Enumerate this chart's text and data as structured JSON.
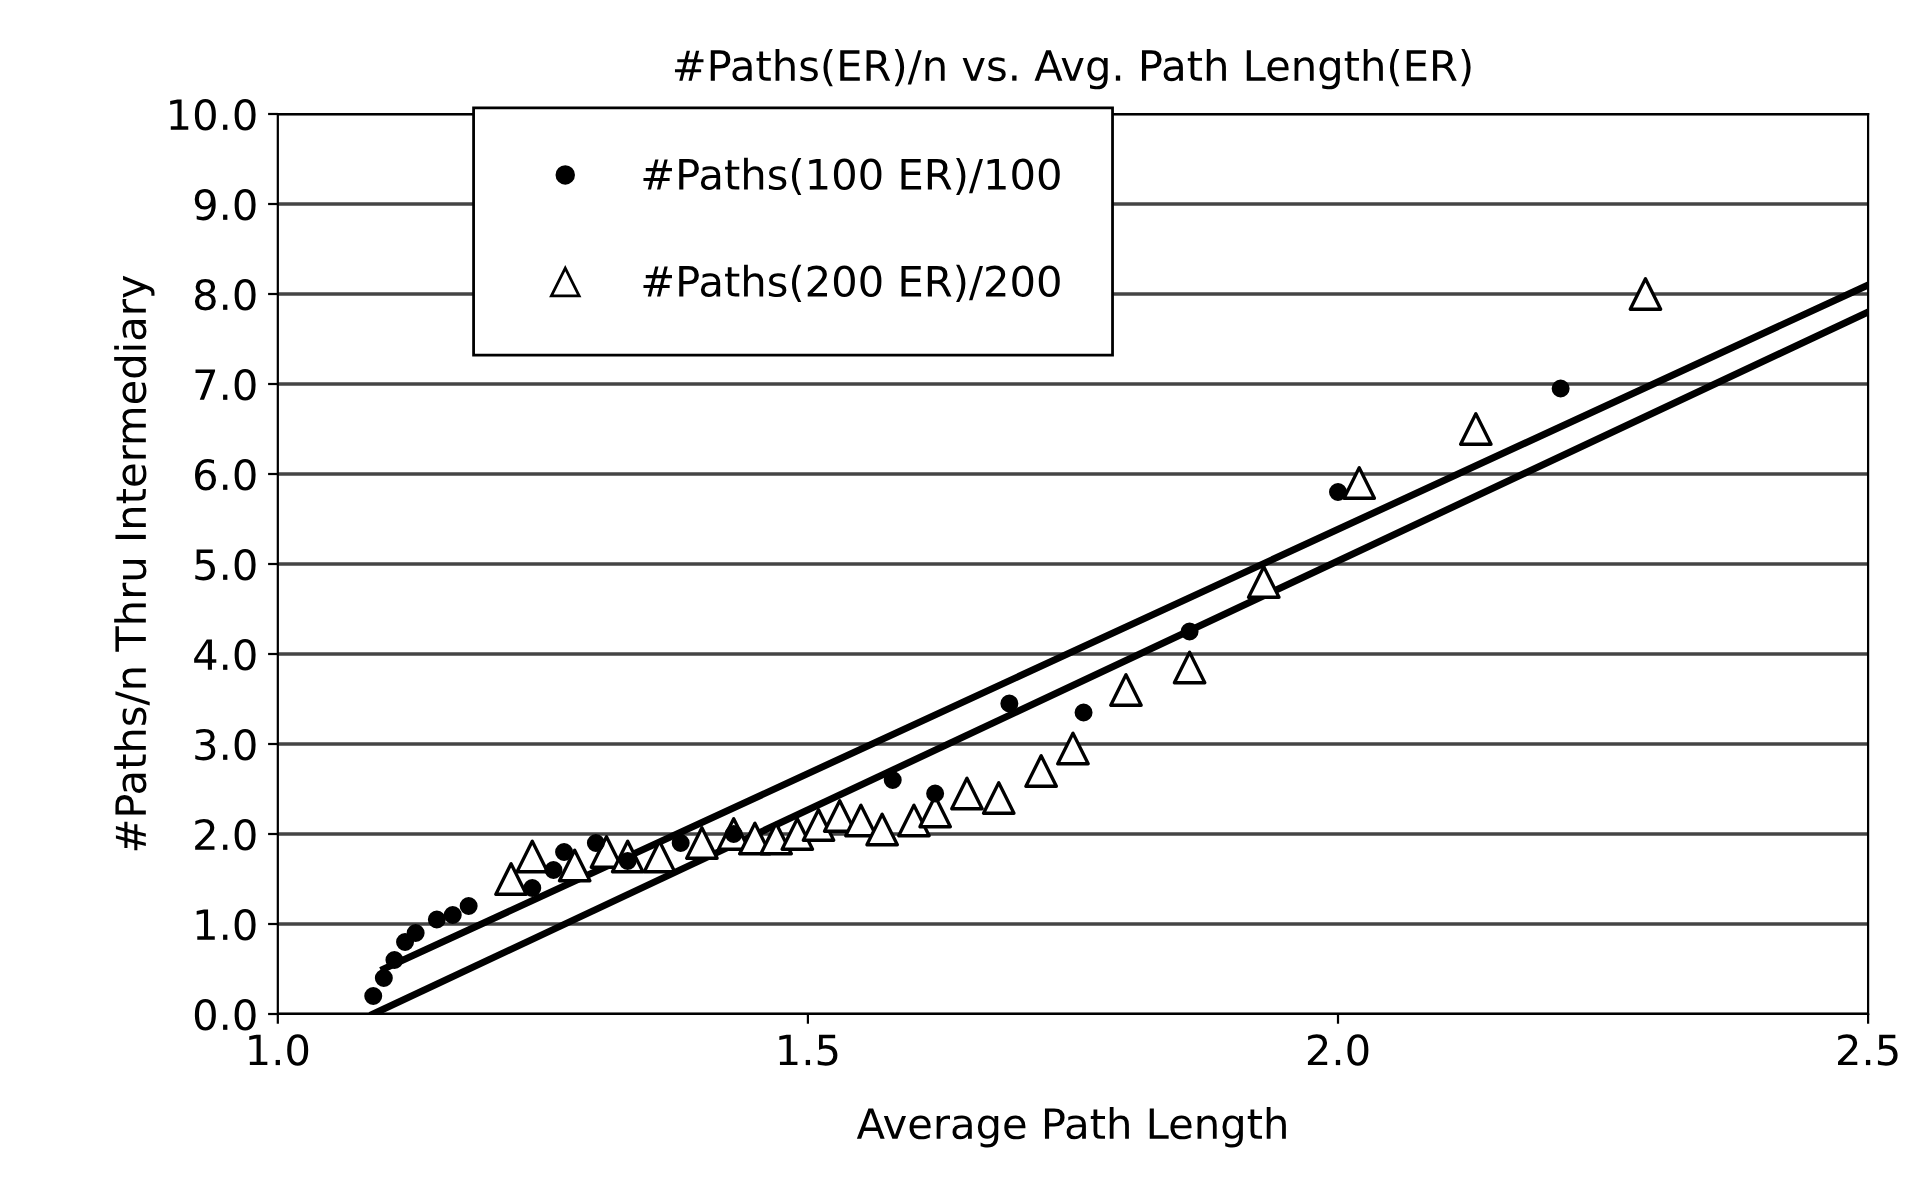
{
  "chart_data": {
    "type": "scatter",
    "title": "#Paths(ER)/n vs. Avg. Path Length(ER)",
    "xlabel": "Average Path Length",
    "ylabel": "#Paths/n Thru Intermediary",
    "xlim": [
      1.0,
      2.5
    ],
    "ylim": [
      0,
      10
    ],
    "xticks": [
      {
        "value": 1.0,
        "label": "1.0"
      },
      {
        "value": 1.5,
        "label": "1.5"
      },
      {
        "value": 2.0,
        "label": "2.0"
      },
      {
        "value": 2.5,
        "label": "2.5"
      }
    ],
    "yticks": [
      {
        "value": 0,
        "label": "0.0"
      },
      {
        "value": 1,
        "label": "1.0"
      },
      {
        "value": 2,
        "label": "2.0"
      },
      {
        "value": 3,
        "label": "3.0"
      },
      {
        "value": 4,
        "label": "4.0"
      },
      {
        "value": 5,
        "label": "5.0"
      },
      {
        "value": 6,
        "label": "6.0"
      },
      {
        "value": 7,
        "label": "7.0"
      },
      {
        "value": 8,
        "label": "8.0"
      },
      {
        "value": 9,
        "label": "9.0"
      },
      {
        "value": 10,
        "label": "10.0"
      }
    ],
    "grid": "y",
    "legend": "top left",
    "series": [
      {
        "name": "#Paths(100 ER)/100",
        "color": "#000000",
        "marker": "circle",
        "x": [
          1.09,
          1.1,
          1.11,
          1.12,
          1.13,
          1.15,
          1.165,
          1.18,
          1.24,
          1.26,
          1.27,
          1.3,
          1.33,
          1.38,
          1.43,
          1.58,
          1.62,
          1.69,
          1.76,
          1.86,
          2.0,
          2.21
        ],
        "values": [
          0.2,
          0.4,
          0.6,
          0.8,
          0.9,
          1.05,
          1.1,
          1.2,
          1.4,
          1.6,
          1.8,
          1.9,
          1.7,
          1.9,
          2.0,
          2.6,
          2.45,
          3.45,
          3.35,
          4.25,
          5.8,
          6.95
        ]
      },
      {
        "name": "#Paths(200 ER)/200",
        "color": "#000000",
        "marker": "triangle",
        "x": [
          1.22,
          1.24,
          1.28,
          1.31,
          1.33,
          1.36,
          1.4,
          1.43,
          1.45,
          1.47,
          1.49,
          1.51,
          1.53,
          1.55,
          1.57,
          1.6,
          1.62,
          1.65,
          1.68,
          1.72,
          1.75,
          1.8,
          1.86,
          1.93,
          2.02,
          2.13,
          2.29
        ],
        "values": [
          1.5,
          1.75,
          1.65,
          1.8,
          1.75,
          1.75,
          1.9,
          2.0,
          1.95,
          1.95,
          2.0,
          2.1,
          2.2,
          2.15,
          2.05,
          2.15,
          2.25,
          2.45,
          2.4,
          2.7,
          2.95,
          3.6,
          3.85,
          4.8,
          5.9,
          6.5,
          8.0
        ]
      },
      {
        "type": "line",
        "color": "#000000",
        "x": [
          1.1,
          2.5
        ],
        "values": [
          0.5,
          8.1
        ]
      },
      {
        "type": "line",
        "color": "#000000",
        "x": [
          1.09,
          2.5
        ],
        "values": [
          0.0,
          7.8
        ]
      }
    ]
  }
}
